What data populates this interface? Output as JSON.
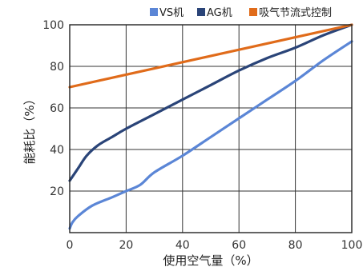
{
  "chart_data": {
    "type": "line",
    "xlabel": "使用空气量（%）",
    "ylabel": "能耗比（%）",
    "xlim": [
      0,
      100
    ],
    "ylim": [
      0,
      100
    ],
    "x_ticks": [
      0,
      20,
      40,
      60,
      80,
      100
    ],
    "y_ticks": [
      20,
      40,
      60,
      80,
      100
    ],
    "x_tick_labels": [
      "0",
      "20",
      "40",
      "60",
      "80",
      "100"
    ],
    "y_tick_labels": [
      "20",
      "40",
      "60",
      "80",
      "100"
    ],
    "grid": true,
    "legend_position": "top",
    "series": [
      {
        "name": "VS机",
        "color": "#5b86d6",
        "points": [
          [
            0,
            2
          ],
          [
            1,
            5
          ],
          [
            3,
            8
          ],
          [
            8,
            13
          ],
          [
            15,
            17
          ],
          [
            20,
            20
          ],
          [
            25,
            23
          ],
          [
            30,
            29
          ],
          [
            40,
            37
          ],
          [
            50,
            46
          ],
          [
            60,
            55
          ],
          [
            70,
            64
          ],
          [
            80,
            73
          ],
          [
            90,
            83
          ],
          [
            100,
            92
          ]
        ]
      },
      {
        "name": "AG机",
        "color": "#2a4478",
        "points": [
          [
            0,
            25
          ],
          [
            3,
            31
          ],
          [
            6,
            37
          ],
          [
            10,
            42
          ],
          [
            15,
            46
          ],
          [
            20,
            50
          ],
          [
            30,
            57
          ],
          [
            40,
            64
          ],
          [
            50,
            71
          ],
          [
            60,
            78
          ],
          [
            70,
            84
          ],
          [
            80,
            89
          ],
          [
            90,
            95
          ],
          [
            100,
            100
          ]
        ]
      },
      {
        "name": "吸气节流式控制",
        "color": "#e06b1a",
        "points": [
          [
            0,
            70
          ],
          [
            100,
            100
          ]
        ]
      }
    ]
  }
}
